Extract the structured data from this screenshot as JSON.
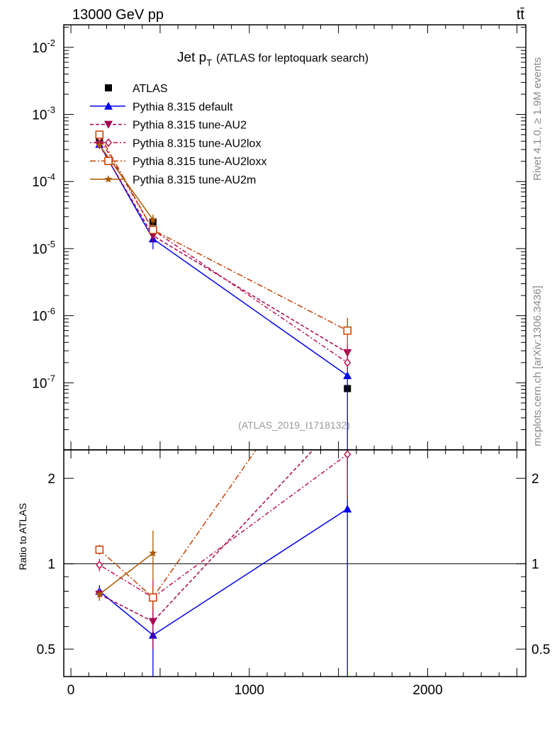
{
  "header": {
    "left": "13000 GeV pp",
    "right": "tt̄"
  },
  "side_labels": {
    "rivet": "Rivet 4.1.0, ≥ 1.9M events",
    "mcplots": "mcplots.cern.ch [arXiv:1306.3436]"
  },
  "chart_data": {
    "type": "line",
    "title": "Jet p",
    "title_sub": "T",
    "title_rest": "(ATLAS for leptoquark search)",
    "analysis": "(ATLAS_2019_I1718132)",
    "xlabel": "",
    "ylabel": "",
    "ratio_ylabel": "Ratio to ATLAS",
    "xlim": [
      -40,
      2550
    ],
    "ylim": [
      1e-08,
      0.0217
    ],
    "yscale": "log",
    "ratio_ylim": [
      0.4,
      2.52
    ],
    "ratio_yscale": "log",
    "x_ticks": [
      0,
      1000,
      2000
    ],
    "x_tick_labels": [
      "0",
      "1000",
      "2000"
    ],
    "y_ticks": [
      0.01,
      0.001,
      0.0001,
      1e-05,
      1e-06,
      1e-07
    ],
    "y_tick_exponents": [
      "-2",
      "-3",
      "-4",
      "-5",
      "-6",
      "-7"
    ],
    "ratio_ticks": [
      0.5,
      1,
      2
    ],
    "ratio_tick_labels": [
      "0.5",
      "1",
      "2"
    ],
    "x": [
      160,
      460,
      1550
    ],
    "legend_position": "top-left",
    "series": [
      {
        "name": "ATLAS",
        "color": "#000000",
        "marker": "square",
        "dash": "",
        "values": [
          0.00045,
          2.5e-05,
          8.2e-08
        ],
        "rel_err": [
          0.04,
          0.1,
          0.05
        ],
        "ratio": [
          1,
          1,
          1
        ]
      },
      {
        "name": "Pythia 8.315 default",
        "color": "#0000ee",
        "marker": "triangle-up",
        "dash": "",
        "values": [
          0.00036,
          1.4e-05,
          1.28e-07
        ],
        "rel_err": [
          0.05,
          0.3,
          1.0
        ],
        "ratio": [
          0.8,
          0.56,
          1.56
        ]
      },
      {
        "name": "Pythia 8.315 tune-AU2",
        "color": "#a3004f",
        "marker": "triangle-down",
        "dash": "5,3",
        "values": [
          0.00035,
          1.56e-05,
          2.8e-07
        ],
        "rel_err": [
          0.05,
          0.2,
          0.3
        ],
        "ratio": [
          0.78,
          0.625,
          3.4
        ]
      },
      {
        "name": "Pythia 8.315 tune-AU2lox",
        "color": "#c0104a",
        "marker": "diamond-open",
        "dash": "2,3,6,3",
        "values": [
          0.00045,
          1.9e-05,
          2e-07
        ],
        "rel_err": [
          0.05,
          0.15,
          0.3
        ],
        "ratio": [
          0.99,
          0.76,
          2.43
        ]
      },
      {
        "name": "Pythia 8.315 tune-AU2loxx",
        "color": "#c84000",
        "marker": "square-open",
        "dash": "8,3,2,3",
        "values": [
          0.0005,
          1.9e-05,
          6e-07
        ],
        "rel_err": [
          0.04,
          0.1,
          0.55
        ],
        "ratio": [
          1.12,
          0.76,
          7.3
        ]
      },
      {
        "name": "Pythia 8.315 tune-AU2m",
        "color": "#a85a00",
        "marker": "star",
        "dash": "",
        "values": [
          0.00035,
          2.7e-05,
          null
        ],
        "rel_err": [
          0.05,
          0.2,
          null
        ],
        "ratio": [
          0.78,
          1.09,
          null
        ]
      }
    ]
  }
}
